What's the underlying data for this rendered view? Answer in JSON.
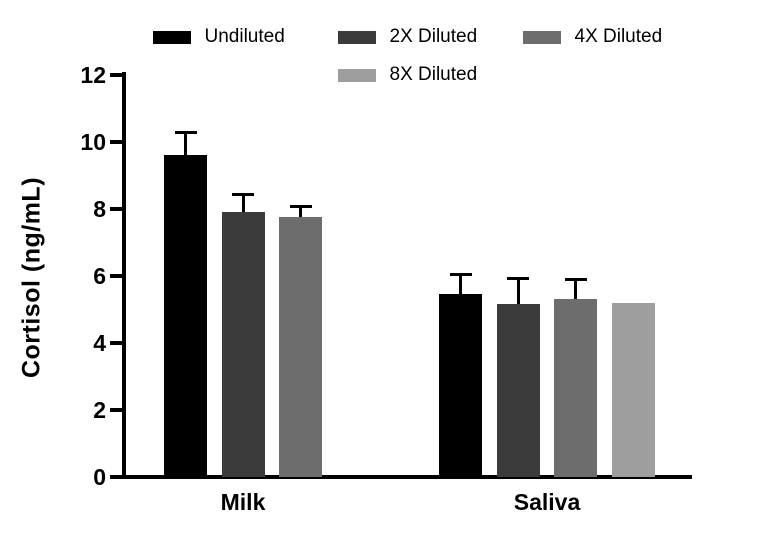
{
  "chart_data": {
    "type": "bar",
    "title": "",
    "xlabel": "",
    "ylabel": "Cortisol (ng/mL)",
    "ylim": [
      0,
      12
    ],
    "yticks": [
      0,
      2,
      4,
      6,
      8,
      10,
      12
    ],
    "grid": false,
    "legend_position": "top",
    "categories": [
      "Milk",
      "Saliva"
    ],
    "series": [
      {
        "name": "Undiluted",
        "color": "#000000",
        "values": [
          9.6,
          5.45
        ],
        "errors_plus": [
          0.7,
          0.6
        ]
      },
      {
        "name": "2X Diluted",
        "color": "#3b3b3b",
        "values": [
          7.9,
          5.15
        ],
        "errors_plus": [
          0.55,
          0.8
        ]
      },
      {
        "name": "4X Diluted",
        "color": "#6d6d6d",
        "values": [
          7.75,
          5.3
        ],
        "errors_plus": [
          0.35,
          0.6
        ]
      },
      {
        "name": "8X Diluted",
        "color": "#9e9e9e",
        "values": [
          null,
          5.2
        ],
        "errors_plus": [
          null,
          0
        ]
      }
    ]
  }
}
